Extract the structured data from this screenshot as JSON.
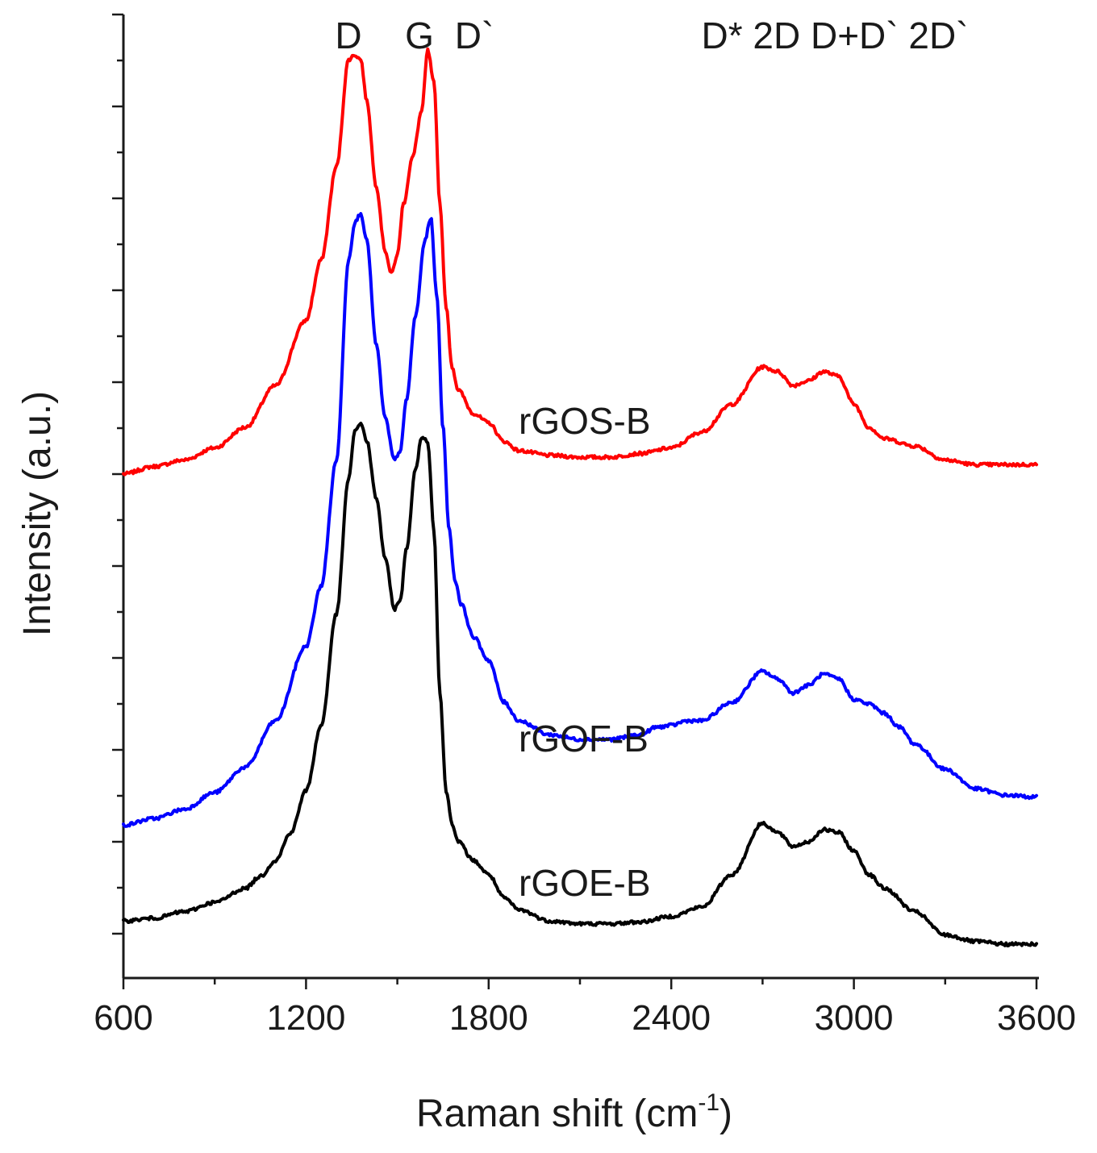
{
  "chart_data": {
    "type": "line",
    "xlabel": "Raman shift (cm",
    "xlabel_superscript": "-1",
    "xlabel_suffix": ")",
    "ylabel": "Intensity (a.u.)",
    "xlim": [
      600,
      3600
    ],
    "ylim": [
      0,
      100
    ],
    "x_ticks": [
      600,
      1200,
      1800,
      2400,
      3000,
      3600
    ],
    "x_tick_labels": [
      "600",
      "1200",
      "1800",
      "2400",
      "3000",
      "3600"
    ],
    "y_ticks_shown": false,
    "grid": false,
    "legend": "inline labels next to curves",
    "peak_labels": [
      {
        "text": "D",
        "x": 1350
      },
      {
        "text": "G",
        "x": 1580
      },
      {
        "text": "D`",
        "x": 1670
      },
      {
        "text": "D* 2D D+D` 2D`",
        "x": 2940
      }
    ],
    "series": [
      {
        "name": "rGOS-B",
        "color": "#ff0000",
        "x": [
          600,
          700,
          800,
          900,
          1000,
          1100,
          1200,
          1250,
          1300,
          1340,
          1360,
          1380,
          1400,
          1430,
          1460,
          1480,
          1500,
          1520,
          1550,
          1580,
          1600,
          1620,
          1640,
          1660,
          1680,
          1700,
          1750,
          1800,
          1850,
          1900,
          2000,
          2100,
          2200,
          2300,
          2400,
          2500,
          2600,
          2700,
          2750,
          2800,
          2850,
          2900,
          2950,
          3000,
          3050,
          3100,
          3200,
          3300,
          3400,
          3500,
          3600
        ],
        "y": [
          53.0,
          53.8,
          54.5,
          55.8,
          58.0,
          62.5,
          69.5,
          76.0,
          86.0,
          97.5,
          98.0,
          97.5,
          93.0,
          84.0,
          77.0,
          74.5,
          76.5,
          82.0,
          87.0,
          92.0,
          98.5,
          95.0,
          82.0,
          71.0,
          64.5,
          62.0,
          59.5,
          58.5,
          56.5,
          55.5,
          55.0,
          54.8,
          54.8,
          55.2,
          55.8,
          57.5,
          60.5,
          64.5,
          64.0,
          62.5,
          63.0,
          64.0,
          63.5,
          60.5,
          58.0,
          56.8,
          56.0,
          54.5,
          54.0,
          54.0,
          54.0
        ]
      },
      {
        "name": "rGOF-B",
        "color": "#0000ff",
        "x": [
          600,
          700,
          800,
          900,
          1000,
          1100,
          1200,
          1250,
          1300,
          1340,
          1360,
          1380,
          1400,
          1430,
          1460,
          1490,
          1510,
          1530,
          1560,
          1590,
          1610,
          1630,
          1650,
          1670,
          1690,
          1710,
          1750,
          1800,
          1850,
          1900,
          2000,
          2100,
          2200,
          2300,
          2350,
          2400,
          2450,
          2500,
          2600,
          2700,
          2750,
          2800,
          2850,
          2900,
          2950,
          3000,
          3050,
          3100,
          3150,
          3200,
          3300,
          3400,
          3500,
          3600
        ],
        "y": [
          15.3,
          16.0,
          17.0,
          18.8,
          21.5,
          26.5,
          34.5,
          41.0,
          54.5,
          76.0,
          80.0,
          81.0,
          78.0,
          67.0,
          59.0,
          54.5,
          55.5,
          61.0,
          70.0,
          78.0,
          80.5,
          72.0,
          58.0,
          47.0,
          41.5,
          39.0,
          35.5,
          33.0,
          28.5,
          26.5,
          25.0,
          24.5,
          24.5,
          25.0,
          25.8,
          26.0,
          26.5,
          26.5,
          28.5,
          31.8,
          31.0,
          29.5,
          30.3,
          31.5,
          31.0,
          28.8,
          28.3,
          27.3,
          25.8,
          24.0,
          21.3,
          19.2,
          18.5,
          18.3
        ]
      },
      {
        "name": "rGOE-B",
        "color": "#000000",
        "x": [
          600,
          700,
          800,
          900,
          1000,
          1050,
          1100,
          1150,
          1200,
          1250,
          1300,
          1340,
          1360,
          1380,
          1400,
          1430,
          1460,
          1490,
          1510,
          1530,
          1560,
          1580,
          1600,
          1620,
          1640,
          1660,
          1680,
          1700,
          1750,
          1800,
          1850,
          1900,
          2000,
          2100,
          2200,
          2300,
          2400,
          2500,
          2600,
          2700,
          2750,
          2800,
          2850,
          2900,
          2950,
          3000,
          3050,
          3100,
          3200,
          3300,
          3400,
          3500,
          3600
        ],
        "y": [
          5.0,
          5.3,
          6.0,
          7.0,
          8.5,
          9.8,
          11.5,
          14.5,
          19.0,
          26.0,
          38.0,
          52.5,
          57.5,
          58.5,
          56.5,
          50.5,
          44.0,
          38.5,
          39.5,
          45.0,
          53.5,
          57.0,
          56.5,
          47.0,
          29.5,
          19.0,
          15.5,
          13.5,
          11.5,
          10.0,
          7.5,
          6.2,
          5.0,
          4.7,
          4.7,
          4.9,
          5.5,
          6.5,
          10.0,
          15.5,
          14.5,
          13.0,
          13.5,
          14.8,
          14.5,
          12.5,
          10.0,
          8.5,
          6.0,
          3.5,
          2.8,
          2.5,
          2.5
        ]
      }
    ]
  }
}
